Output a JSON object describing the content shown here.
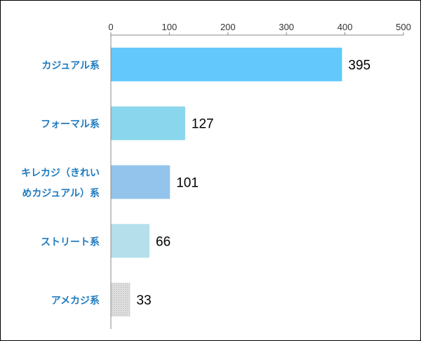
{
  "chart_data": {
    "type": "bar",
    "orientation": "horizontal",
    "categories": [
      [
        "カジュアル系"
      ],
      [
        "フォーマル系"
      ],
      [
        "キレカジ（きれい",
        "めカジュアル）系"
      ],
      [
        "ストリート系"
      ],
      [
        "アメカジ系"
      ]
    ],
    "values": [
      395,
      127,
      101,
      66,
      33
    ],
    "data_labels": [
      "395",
      "127",
      "101",
      "66",
      "33"
    ],
    "x_ticks": [
      "0",
      "100",
      "200",
      "300",
      "400",
      "500"
    ],
    "xlim": [
      0,
      500
    ],
    "axis_position": "top",
    "grid": false,
    "legend": "none",
    "bar_colors": [
      "#63c8fc",
      "#8ad6ec",
      "#93c4ec",
      "#b4dfeb",
      "#d4d4d4"
    ],
    "bar_patterns": [
      "solid",
      "solid",
      "solid",
      "solid",
      "dotted"
    ],
    "category_label_color": "#1f7bbf"
  }
}
